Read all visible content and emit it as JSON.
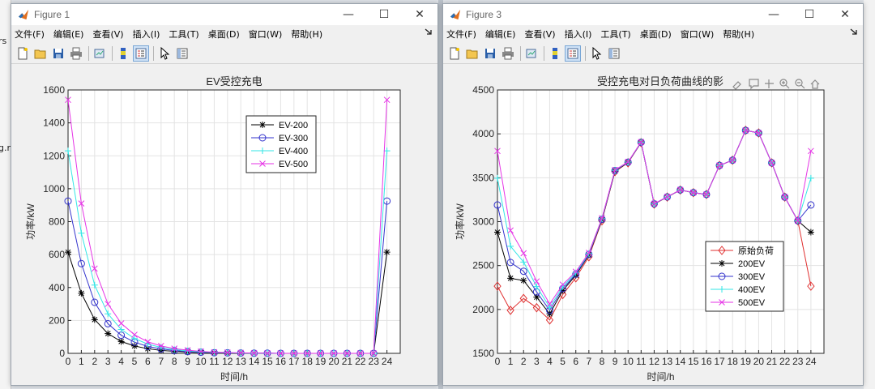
{
  "background": {
    "left_snippets": [
      "rs",
      "g.m"
    ],
    "colors": {
      "desktop": "#dfe3e8"
    }
  },
  "windows": [
    {
      "id": "fig1",
      "title": "Figure 1",
      "menu": [
        "文件(F)",
        "编辑(E)",
        "查看(V)",
        "插入(I)",
        "工具(T)",
        "桌面(D)",
        "窗口(W)",
        "帮助(H)"
      ],
      "controls": {
        "minimize": "—",
        "maximize": "☐",
        "close": "✕"
      }
    },
    {
      "id": "fig3",
      "title": "Figure 3",
      "menu": [
        "文件(F)",
        "编辑(E)",
        "查看(V)",
        "插入(I)",
        "工具(T)",
        "桌面(D)",
        "窗口(W)",
        "帮助(H)"
      ],
      "controls": {
        "minimize": "—",
        "maximize": "☐",
        "close": "✕"
      }
    }
  ],
  "chart_data": [
    {
      "type": "line",
      "title": "EV受控充电",
      "xlabel": "时间/h",
      "ylabel": "功率/kW",
      "xlim": [
        0,
        25
      ],
      "ylim": [
        0,
        1600
      ],
      "xticks": [
        0,
        1,
        2,
        3,
        4,
        5,
        6,
        7,
        8,
        9,
        10,
        11,
        12,
        13,
        14,
        15,
        16,
        17,
        18,
        19,
        20,
        21,
        22,
        23,
        24
      ],
      "yticks": [
        0,
        200,
        400,
        600,
        800,
        1000,
        1200,
        1400,
        1600
      ],
      "grid": true,
      "legend_position": "top-right",
      "x": [
        0,
        1,
        2,
        3,
        4,
        5,
        6,
        7,
        8,
        9,
        10,
        11,
        12,
        13,
        14,
        15,
        16,
        17,
        18,
        19,
        20,
        21,
        22,
        23,
        24
      ],
      "series": [
        {
          "name": "EV-200",
          "color": "#000000",
          "marker": "star",
          "values": [
            615,
            365,
            205,
            120,
            72,
            45,
            28,
            18,
            12,
            8,
            5,
            3,
            2,
            1,
            1,
            0,
            0,
            0,
            0,
            0,
            0,
            0,
            0,
            0,
            615
          ]
        },
        {
          "name": "EV-300",
          "color": "#3333cc",
          "marker": "circle",
          "values": [
            925,
            545,
            310,
            180,
            110,
            68,
            42,
            27,
            17,
            11,
            7,
            4,
            3,
            2,
            1,
            1,
            0,
            0,
            0,
            0,
            0,
            0,
            0,
            0,
            925
          ]
        },
        {
          "name": "EV-400",
          "color": "#33e6e6",
          "marker": "plus",
          "values": [
            1230,
            730,
            415,
            240,
            145,
            90,
            56,
            36,
            23,
            15,
            9,
            6,
            4,
            2,
            1,
            1,
            0,
            0,
            0,
            0,
            0,
            0,
            0,
            0,
            1230
          ]
        },
        {
          "name": "EV-500",
          "color": "#e633e6",
          "marker": "x",
          "values": [
            1540,
            910,
            515,
            300,
            182,
            113,
            70,
            45,
            29,
            19,
            12,
            7,
            5,
            3,
            2,
            1,
            0,
            0,
            0,
            0,
            0,
            0,
            0,
            0,
            1540
          ]
        }
      ]
    },
    {
      "type": "line",
      "title": "受控充电对日负荷曲线的影",
      "xlabel": "时间/h",
      "ylabel": "功率/kW",
      "xlim": [
        0,
        25
      ],
      "ylim": [
        1500,
        4500
      ],
      "xticks": [
        0,
        1,
        2,
        3,
        4,
        5,
        6,
        7,
        8,
        9,
        10,
        11,
        12,
        13,
        14,
        15,
        16,
        17,
        18,
        19,
        20,
        21,
        22,
        23,
        24
      ],
      "yticks": [
        1500,
        2000,
        2500,
        3000,
        3500,
        4000,
        4500
      ],
      "grid": true,
      "legend_position": "bottom-right",
      "x": [
        0,
        1,
        2,
        3,
        4,
        5,
        6,
        7,
        8,
        9,
        10,
        11,
        12,
        13,
        14,
        15,
        16,
        17,
        18,
        19,
        20,
        21,
        22,
        23,
        24
      ],
      "series": [
        {
          "name": "原始负荷",
          "color": "#e03030",
          "marker": "diamond",
          "values": [
            2265,
            1990,
            2125,
            2020,
            1880,
            2170,
            2360,
            2600,
            3010,
            3570,
            3670,
            3900,
            3200,
            3280,
            3360,
            3330,
            3310,
            3640,
            3700,
            4040,
            4010,
            3670,
            3280,
            3010,
            2265
          ]
        },
        {
          "name": "200EV",
          "color": "#000000",
          "marker": "star",
          "values": [
            2880,
            2355,
            2330,
            2140,
            1950,
            2215,
            2390,
            2620,
            3020,
            3575,
            3675,
            3903,
            3202,
            3281,
            3361,
            3330,
            3310,
            3640,
            3700,
            4040,
            4010,
            3670,
            3280,
            3010,
            2880
          ]
        },
        {
          "name": "300EV",
          "color": "#3333cc",
          "marker": "circle",
          "values": [
            3190,
            2535,
            2435,
            2200,
            1990,
            2238,
            2402,
            2627,
            3027,
            3581,
            3677,
            3904,
            3203,
            3282,
            3361,
            3331,
            3310,
            3640,
            3700,
            4040,
            4010,
            3670,
            3280,
            3010,
            3190
          ]
        },
        {
          "name": "400EV",
          "color": "#33e6e6",
          "marker": "plus",
          "values": [
            3495,
            2720,
            2540,
            2260,
            2025,
            2260,
            2416,
            2636,
            3033,
            3585,
            3679,
            3906,
            3204,
            3282,
            3361,
            3331,
            3310,
            3640,
            3700,
            4040,
            4010,
            3670,
            3280,
            3010,
            3495
          ]
        },
        {
          "name": "500EV",
          "color": "#e633e6",
          "marker": "x",
          "values": [
            3805,
            2900,
            2640,
            2320,
            2062,
            2283,
            2430,
            2645,
            3039,
            3589,
            3682,
            3907,
            3205,
            3283,
            3362,
            3331,
            3310,
            3640,
            3700,
            4040,
            4010,
            3670,
            3280,
            3010,
            3805
          ]
        }
      ]
    }
  ]
}
